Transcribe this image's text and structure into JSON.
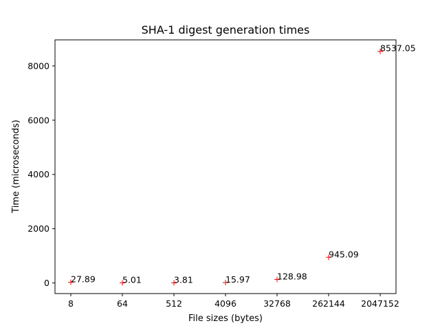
{
  "chart_data": {
    "type": "scatter",
    "title": "SHA-1 digest generation times",
    "xlabel": "File sizes (bytes)",
    "ylabel": "Time (microseconds)",
    "categories": [
      "8",
      "64",
      "512",
      "4096",
      "32768",
      "262144",
      "2047152"
    ],
    "values": [
      27.89,
      5.01,
      3.81,
      15.97,
      128.98,
      945.09,
      8537.05
    ],
    "point_labels": [
      "27.89",
      "5.01",
      "3.81",
      "15.97",
      "128.98",
      "945.09",
      "8537.05"
    ],
    "y_ticks": [
      0,
      2000,
      4000,
      6000,
      8000
    ],
    "y_tick_labels": [
      "0",
      "2000",
      "4000",
      "6000",
      "8000"
    ],
    "ylim": [
      -390,
      8960
    ],
    "grid": false,
    "legend": "none",
    "marker": "+",
    "marker_color": "#ff0000"
  }
}
